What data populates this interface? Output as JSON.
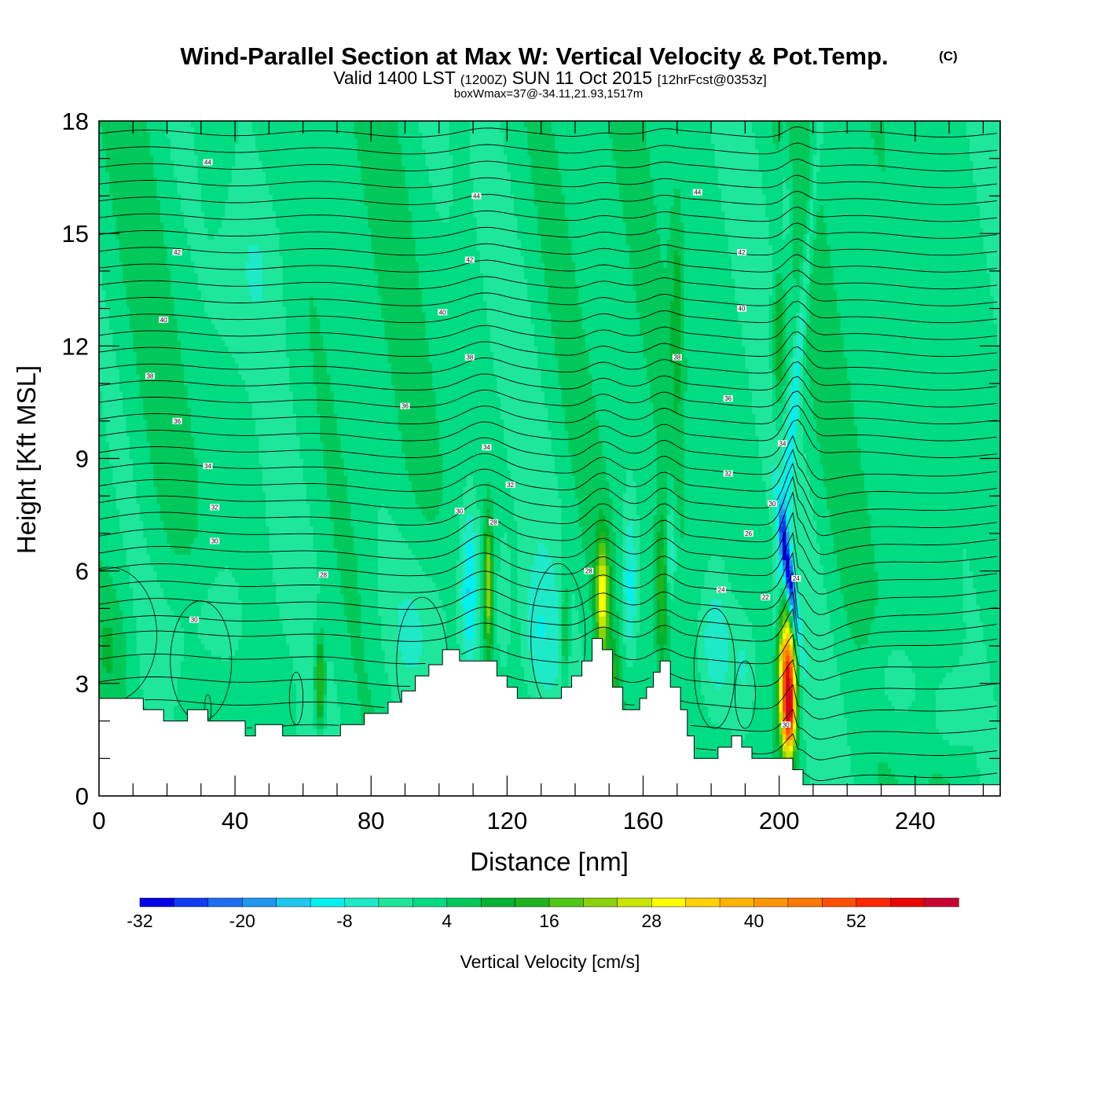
{
  "title": {
    "main": "Wind-Parallel Section at Max W: Vertical Velocity & Pot.Temp.",
    "copyright": "(C)",
    "valid_prefix": "Valid 1400 LST",
    "valid_utc": "(1200Z)",
    "valid_date": "SUN 11 Oct 2015",
    "forecast": "[12hrFcst@0353z]",
    "box_info": "boxWmax=37@-34.11,21.93,1517m"
  },
  "chart_data": {
    "type": "heatmap",
    "xlabel": "Distance [nm]",
    "ylabel": "Height [Kft MSL]",
    "xlim": [
      0,
      265
    ],
    "ylim": [
      0,
      18
    ],
    "xticks": [
      0,
      40,
      80,
      120,
      160,
      200,
      240
    ],
    "yticks": [
      0,
      3,
      6,
      9,
      12,
      15,
      18
    ],
    "background_w": 2,
    "colorbar": {
      "label": "Vertical Velocity [cm/s]",
      "min": -32,
      "max": 60,
      "step": 4,
      "tick_values": [
        -32,
        -20,
        -8,
        4,
        16,
        28,
        40,
        52
      ],
      "colors": [
        "#0000e6",
        "#0f3cf2",
        "#1e6ef5",
        "#1e98f0",
        "#1ec8f0",
        "#00f0f0",
        "#1eeac8",
        "#1ee69b",
        "#00dc82",
        "#00c85a",
        "#00b432",
        "#1eb41e",
        "#50c814",
        "#8cd20a",
        "#c8e600",
        "#ffff00",
        "#ffd200",
        "#ffb400",
        "#ff9600",
        "#ff7800",
        "#ff5000",
        "#ff2800",
        "#eb0000",
        "#c80032"
      ]
    },
    "terrain": [
      [
        0,
        2.6
      ],
      [
        13,
        2.6
      ],
      [
        13,
        2.3
      ],
      [
        19,
        2.3
      ],
      [
        19,
        2.0
      ],
      [
        26,
        2.0
      ],
      [
        26,
        2.3
      ],
      [
        32,
        2.3
      ],
      [
        32,
        2.0
      ],
      [
        43,
        2.0
      ],
      [
        43,
        1.6
      ],
      [
        46,
        1.6
      ],
      [
        46,
        1.9
      ],
      [
        54,
        1.9
      ],
      [
        54,
        1.6
      ],
      [
        71,
        1.6
      ],
      [
        71,
        1.9
      ],
      [
        78,
        1.9
      ],
      [
        78,
        2.2
      ],
      [
        85,
        2.2
      ],
      [
        85,
        2.5
      ],
      [
        89,
        2.5
      ],
      [
        89,
        2.8
      ],
      [
        93,
        2.8
      ],
      [
        93,
        3.2
      ],
      [
        97,
        3.2
      ],
      [
        97,
        3.5
      ],
      [
        101,
        3.5
      ],
      [
        101,
        3.9
      ],
      [
        106,
        3.9
      ],
      [
        106,
        3.6
      ],
      [
        117,
        3.6
      ],
      [
        117,
        3.2
      ],
      [
        120,
        3.2
      ],
      [
        120,
        2.9
      ],
      [
        123,
        2.9
      ],
      [
        123,
        2.6
      ],
      [
        136,
        2.6
      ],
      [
        136,
        2.9
      ],
      [
        139,
        2.9
      ],
      [
        139,
        3.2
      ],
      [
        142,
        3.2
      ],
      [
        142,
        3.6
      ],
      [
        145,
        3.6
      ],
      [
        145,
        4.2
      ],
      [
        148,
        4.2
      ],
      [
        148,
        3.9
      ],
      [
        151,
        3.9
      ],
      [
        151,
        2.9
      ],
      [
        154,
        2.9
      ],
      [
        154,
        2.3
      ],
      [
        159,
        2.3
      ],
      [
        159,
        2.6
      ],
      [
        161,
        2.6
      ],
      [
        161,
        2.9
      ],
      [
        163,
        2.9
      ],
      [
        163,
        3.3
      ],
      [
        165,
        3.3
      ],
      [
        165,
        3.6
      ],
      [
        168,
        3.6
      ],
      [
        168,
        2.9
      ],
      [
        171,
        2.9
      ],
      [
        171,
        2.3
      ],
      [
        173,
        2.3
      ],
      [
        173,
        1.6
      ],
      [
        175,
        1.6
      ],
      [
        175,
        1.0
      ],
      [
        182,
        1.0
      ],
      [
        182,
        1.3
      ],
      [
        186,
        1.3
      ],
      [
        186,
        1.6
      ],
      [
        189,
        1.6
      ],
      [
        189,
        1.3
      ],
      [
        192,
        1.3
      ],
      [
        192,
        1.0
      ],
      [
        204,
        1.0
      ],
      [
        204,
        0.7
      ],
      [
        207,
        0.7
      ],
      [
        207,
        0.3
      ],
      [
        265,
        0.3
      ]
    ],
    "w_features": [
      {
        "x": 3,
        "z": 4.0,
        "w": 5,
        "sx": 4,
        "sz": 1.2
      },
      {
        "x": 30,
        "z": 4.5,
        "w": -6,
        "sx": 9,
        "sz": 1.5
      },
      {
        "x": 65,
        "z": 3.0,
        "w": 20,
        "sx": 1.0,
        "sz": 0.9
      },
      {
        "x": 60,
        "z": 4.0,
        "w": 2,
        "sx": 3,
        "sz": 1.0
      },
      {
        "x": 95,
        "z": 4.5,
        "w": -7,
        "sx": 8,
        "sz": 1.6
      },
      {
        "x": 109,
        "z": 5.5,
        "w": -14,
        "sx": 1.8,
        "sz": 1.5
      },
      {
        "x": 114.5,
        "z": 5.6,
        "w": 22,
        "sx": 0.9,
        "sz": 1.3
      },
      {
        "x": 119,
        "z": 5.0,
        "w": -6,
        "sx": 1.4,
        "sz": 1.3
      },
      {
        "x": 129,
        "z": 4.3,
        "w": -7,
        "sx": 3.5,
        "sz": 1.3
      },
      {
        "x": 137,
        "z": 4.3,
        "w": 10,
        "sx": 1.0,
        "sz": 1.3
      },
      {
        "x": 148,
        "z": 5.3,
        "w": 28,
        "sx": 1.3,
        "sz": 1.1
      },
      {
        "x": 151.5,
        "z": 3.0,
        "w": 9,
        "sx": 1.0,
        "sz": 0.7
      },
      {
        "x": 156,
        "z": 5.5,
        "w": -12,
        "sx": 1.6,
        "sz": 1.5
      },
      {
        "x": 165.5,
        "z": 5.5,
        "w": 14,
        "sx": 1.2,
        "sz": 1.4
      },
      {
        "x": 168,
        "z": 6.5,
        "w": -10,
        "sx": 1.2,
        "sz": 1.0
      },
      {
        "x": 181,
        "z": 4.0,
        "w": -9,
        "sx": 3.5,
        "sz": 1.3
      },
      {
        "x": 190,
        "z": 3.5,
        "w": -6,
        "sx": 2.5,
        "sz": 1.0
      },
      {
        "x": 202.5,
        "z": 3.2,
        "w": 52,
        "sx": 1.8,
        "sz": 1.2
      },
      {
        "x": 203,
        "z": 2.0,
        "w": 28,
        "sx": 1.3,
        "sz": 0.7
      },
      {
        "x": 234,
        "z": 3.0,
        "w": -5,
        "sx": 7,
        "sz": 1.1
      },
      {
        "x": 250,
        "z": 2.2,
        "w": -6,
        "sx": 4,
        "sz": 0.8
      },
      {
        "x": 45,
        "z": 14.0,
        "w": -4,
        "sx": 6,
        "sz": 1.5
      },
      {
        "x": 200,
        "z": 12.0,
        "w": 14,
        "sx": 1.4,
        "sz": 1.3
      },
      {
        "x": 202,
        "z": 16.0,
        "w": -6,
        "sx": 1.2,
        "sz": 1.4
      },
      {
        "x": 170,
        "z": 13.0,
        "w": 8,
        "sx": 1.5,
        "sz": 2.5
      }
    ],
    "tilted_features": [
      {
        "x0": 203,
        "z0": 5.8,
        "w": -34,
        "sx": 1.0,
        "sz": 1.3,
        "slope": -0.14
      },
      {
        "x0": 205,
        "z0": 11.0,
        "w": -10,
        "sx": 1.0,
        "sz": 5.0,
        "slope": 0.1
      }
    ],
    "theta_labels": [
      {
        "x": 32,
        "z": 16.9,
        "text": "44"
      },
      {
        "x": 111,
        "z": 16.0,
        "text": "44"
      },
      {
        "x": 176,
        "z": 16.1,
        "text": "44"
      },
      {
        "x": 23,
        "z": 14.5,
        "text": "42"
      },
      {
        "x": 109,
        "z": 14.3,
        "text": "42"
      },
      {
        "x": 189,
        "z": 14.5,
        "text": "42"
      },
      {
        "x": 19,
        "z": 12.7,
        "text": "40"
      },
      {
        "x": 101,
        "z": 12.9,
        "text": "40"
      },
      {
        "x": 189,
        "z": 13.0,
        "text": "40"
      },
      {
        "x": 15,
        "z": 11.2,
        "text": "38"
      },
      {
        "x": 109,
        "z": 11.7,
        "text": "38"
      },
      {
        "x": 170,
        "z": 11.7,
        "text": "38"
      },
      {
        "x": 23,
        "z": 10.0,
        "text": "36"
      },
      {
        "x": 90,
        "z": 10.4,
        "text": "36"
      },
      {
        "x": 185,
        "z": 10.6,
        "text": "36"
      },
      {
        "x": 32,
        "z": 8.8,
        "text": "34"
      },
      {
        "x": 114,
        "z": 9.3,
        "text": "34"
      },
      {
        "x": 201,
        "z": 9.4,
        "text": "34"
      },
      {
        "x": 34,
        "z": 7.7,
        "text": "32"
      },
      {
        "x": 121,
        "z": 8.3,
        "text": "32"
      },
      {
        "x": 185,
        "z": 8.6,
        "text": "32"
      },
      {
        "x": 106,
        "z": 7.6,
        "text": "30"
      },
      {
        "x": 198,
        "z": 7.8,
        "text": "30"
      },
      {
        "x": 34,
        "z": 6.8,
        "text": "30"
      },
      {
        "x": 116,
        "z": 7.3,
        "text": "28"
      },
      {
        "x": 191,
        "z": 7.0,
        "text": "26"
      },
      {
        "x": 66,
        "z": 5.9,
        "text": "28"
      },
      {
        "x": 144,
        "z": 6.0,
        "text": "28"
      },
      {
        "x": 28,
        "z": 4.7,
        "text": "30"
      },
      {
        "x": 183,
        "z": 5.5,
        "text": "24"
      },
      {
        "x": 196,
        "z": 5.3,
        "text": "22"
      },
      {
        "x": 205,
        "z": 5.8,
        "text": "24"
      },
      {
        "x": 202,
        "z": 1.9,
        "text": "30"
      }
    ]
  }
}
